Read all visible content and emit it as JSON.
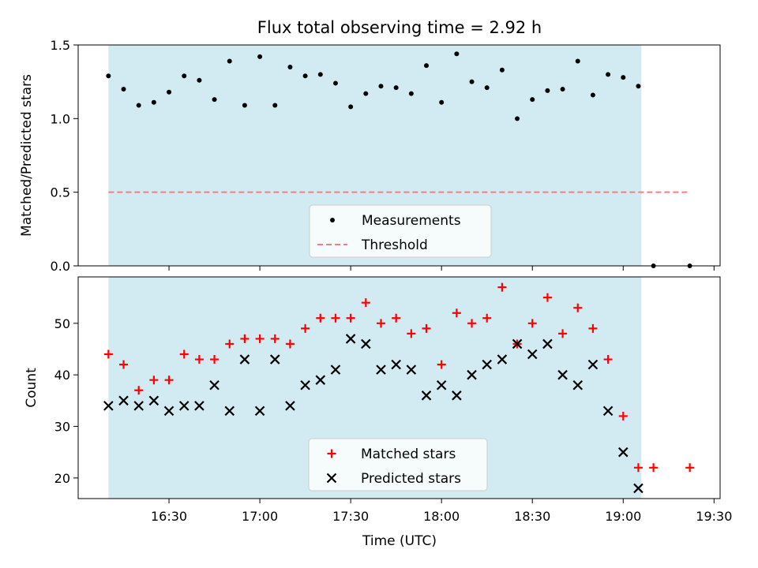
{
  "figure": {
    "title": "Flux total observing time = 2.92 h",
    "xlabel": "Time (UTC)"
  },
  "chart_data": [
    {
      "type": "scatter",
      "title": "Flux total observing time = 2.92 h",
      "xlabel": "",
      "ylabel": "Matched/Predicted stars",
      "xlim": [
        "16:00",
        "19:32"
      ],
      "ylim": [
        0,
        1.5
      ],
      "yticks": [
        0.0,
        0.5,
        1.0,
        1.5
      ],
      "ytick_labels": [
        "0.0",
        "0.5",
        "1.0",
        "1.5"
      ],
      "xtick_values": [
        "16:30",
        "17:00",
        "17:30",
        "18:00",
        "18:30",
        "19:00",
        "19:30"
      ],
      "shaded_span": {
        "x": [
          "16:10",
          "19:06"
        ],
        "color": "#add8e6"
      },
      "legend": {
        "placement": "lower-center",
        "entries": [
          "Measurements",
          "Threshold"
        ]
      },
      "series": [
        {
          "name": "Measurements",
          "marker": "dot",
          "color": "#000000",
          "x": [
            "16:10",
            "16:15",
            "16:20",
            "16:25",
            "16:30",
            "16:35",
            "16:40",
            "16:45",
            "16:50",
            "16:55",
            "17:00",
            "17:05",
            "17:10",
            "17:15",
            "17:20",
            "17:25",
            "17:30",
            "17:35",
            "17:40",
            "17:45",
            "17:50",
            "17:55",
            "18:00",
            "18:05",
            "18:10",
            "18:15",
            "18:20",
            "18:25",
            "18:30",
            "18:35",
            "18:40",
            "18:45",
            "18:50",
            "18:55",
            "19:00",
            "19:05",
            "19:10",
            "19:22"
          ],
          "y": [
            1.29,
            1.2,
            1.09,
            1.11,
            1.18,
            1.29,
            1.26,
            1.13,
            1.39,
            1.09,
            1.42,
            1.09,
            1.35,
            1.29,
            1.3,
            1.24,
            1.08,
            1.17,
            1.22,
            1.21,
            1.17,
            1.36,
            1.11,
            1.44,
            1.25,
            1.21,
            1.33,
            1.0,
            1.13,
            1.19,
            1.2,
            1.39,
            1.16,
            1.3,
            1.28,
            1.22,
            0.0,
            0.0
          ]
        },
        {
          "name": "Threshold",
          "style": "dashed",
          "color": "#f08080",
          "x": [
            "16:10",
            "19:22"
          ],
          "y": [
            0.5,
            0.5
          ]
        }
      ]
    },
    {
      "type": "scatter",
      "title": "",
      "xlabel": "Time (UTC)",
      "ylabel": "Count",
      "xlim": [
        "16:00",
        "19:32"
      ],
      "ylim": [
        16,
        59
      ],
      "yticks": [
        20,
        30,
        40,
        50
      ],
      "ytick_labels": [
        "20",
        "30",
        "40",
        "50"
      ],
      "xticks": [
        "16:30",
        "17:00",
        "17:30",
        "18:00",
        "18:30",
        "19:00",
        "19:30"
      ],
      "shaded_span": {
        "x": [
          "16:10",
          "19:06"
        ],
        "color": "#add8e6"
      },
      "legend": {
        "placement": "lower-center",
        "entries": [
          "Matched stars",
          "Predicted stars"
        ]
      },
      "series": [
        {
          "name": "Matched stars",
          "marker": "plus",
          "color": "#ff0000",
          "x": [
            "16:10",
            "16:15",
            "16:20",
            "16:25",
            "16:30",
            "16:35",
            "16:40",
            "16:45",
            "16:50",
            "16:55",
            "17:00",
            "17:05",
            "17:10",
            "17:15",
            "17:20",
            "17:25",
            "17:30",
            "17:35",
            "17:40",
            "17:45",
            "17:50",
            "17:55",
            "18:00",
            "18:05",
            "18:10",
            "18:15",
            "18:20",
            "18:25",
            "18:30",
            "18:35",
            "18:40",
            "18:45",
            "18:50",
            "18:55",
            "19:00",
            "19:05",
            "19:10",
            "19:22"
          ],
          "y": [
            44,
            42,
            37,
            39,
            39,
            44,
            43,
            43,
            46,
            47,
            47,
            47,
            46,
            49,
            51,
            51,
            51,
            54,
            50,
            51,
            48,
            49,
            42,
            52,
            50,
            51,
            57,
            46,
            50,
            55,
            48,
            53,
            49,
            43,
            32,
            22,
            22,
            22
          ]
        },
        {
          "name": "Predicted stars",
          "marker": "x",
          "color": "#000000",
          "x": [
            "16:10",
            "16:15",
            "16:20",
            "16:25",
            "16:30",
            "16:35",
            "16:40",
            "16:45",
            "16:50",
            "16:55",
            "17:00",
            "17:05",
            "17:10",
            "17:15",
            "17:20",
            "17:25",
            "17:30",
            "17:35",
            "17:40",
            "17:45",
            "17:50",
            "17:55",
            "18:00",
            "18:05",
            "18:10",
            "18:15",
            "18:20",
            "18:25",
            "18:30",
            "18:35",
            "18:40",
            "18:45",
            "18:50",
            "18:55",
            "19:00",
            "19:05"
          ],
          "y": [
            34,
            35,
            34,
            35,
            33,
            34,
            34,
            38,
            33,
            43,
            33,
            43,
            34,
            38,
            39,
            41,
            47,
            46,
            41,
            42,
            41,
            36,
            38,
            36,
            40,
            42,
            43,
            46,
            44,
            46,
            40,
            38,
            42,
            33,
            25,
            18
          ]
        }
      ]
    }
  ]
}
